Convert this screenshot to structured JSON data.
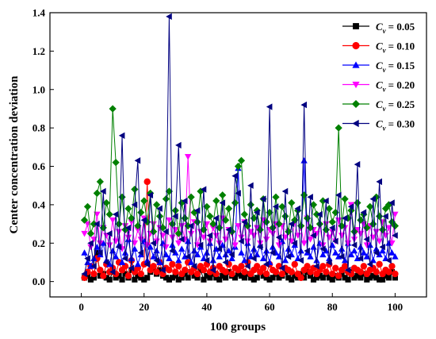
{
  "chart_data": {
    "type": "scatter",
    "title": "",
    "xlabel": "100 groups",
    "ylabel": "Center concentration deviation",
    "xlim": [
      -10,
      110
    ],
    "ylim": [
      -0.08,
      1.4
    ],
    "xticks": [
      0,
      20,
      40,
      60,
      80,
      100
    ],
    "yticks": [
      0.0,
      0.2,
      0.4,
      0.6,
      0.8,
      1.0,
      1.2,
      1.4
    ],
    "ytick_labels": [
      "0.0",
      "0.2",
      "0.4",
      "0.6",
      "0.8",
      "1.0",
      "1.2",
      "1.4"
    ],
    "grid": false,
    "legend_position": "top-right",
    "x": [
      1,
      2,
      3,
      4,
      5,
      6,
      7,
      8,
      9,
      10,
      11,
      12,
      13,
      14,
      15,
      16,
      17,
      18,
      19,
      20,
      21,
      22,
      23,
      24,
      25,
      26,
      27,
      28,
      29,
      30,
      31,
      32,
      33,
      34,
      35,
      36,
      37,
      38,
      39,
      40,
      41,
      42,
      43,
      44,
      45,
      46,
      47,
      48,
      49,
      50,
      51,
      52,
      53,
      54,
      55,
      56,
      57,
      58,
      59,
      60,
      61,
      62,
      63,
      64,
      65,
      66,
      67,
      68,
      69,
      70,
      71,
      72,
      73,
      74,
      75,
      76,
      77,
      78,
      79,
      80,
      81,
      82,
      83,
      84,
      85,
      86,
      87,
      88,
      89,
      90,
      91,
      92,
      93,
      94,
      95,
      96,
      97,
      98,
      99,
      100
    ],
    "series": [
      {
        "name_prefix": "C",
        "name_sub": "v",
        "name_value": "= 0.05",
        "color": "#000000",
        "marker": "square",
        "values": [
          0.02,
          0.03,
          0.01,
          0.02,
          0.15,
          0.03,
          0.04,
          0.02,
          0.01,
          0.05,
          0.02,
          0.03,
          0.01,
          0.04,
          0.02,
          0.06,
          0.01,
          0.03,
          0.02,
          0.01,
          0.02,
          0.05,
          0.07,
          0.04,
          0.06,
          0.03,
          0.02,
          0.01,
          0.02,
          0.03,
          0.01,
          0.02,
          0.04,
          0.02,
          0.05,
          0.03,
          0.02,
          0.06,
          0.01,
          0.03,
          0.02,
          0.04,
          0.02,
          0.01,
          0.03,
          0.02,
          0.05,
          0.03,
          0.02,
          0.04,
          0.03,
          0.02,
          0.04,
          0.02,
          0.01,
          0.02,
          0.05,
          0.03,
          0.02,
          0.01,
          0.02,
          0.04,
          0.02,
          0.03,
          0.05,
          0.02,
          0.01,
          0.03,
          0.02,
          0.04,
          0.02,
          0.05,
          0.03,
          0.01,
          0.02,
          0.03,
          0.02,
          0.04,
          0.02,
          0.01,
          0.03,
          0.02,
          0.04,
          0.02,
          0.01,
          0.05,
          0.02,
          0.03,
          0.02,
          0.04,
          0.01,
          0.02,
          0.03,
          0.02,
          0.01,
          0.01,
          0.03,
          0.02,
          0.05,
          0.02
        ]
      },
      {
        "name_prefix": "C",
        "name_sub": "v",
        "name_value": "= 0.10",
        "color": "#ff0000",
        "marker": "circle",
        "values": [
          0.02,
          0.05,
          0.08,
          0.04,
          0.12,
          0.06,
          0.03,
          0.09,
          0.05,
          0.07,
          0.04,
          0.1,
          0.06,
          0.08,
          0.03,
          0.11,
          0.05,
          0.07,
          0.04,
          0.09,
          0.52,
          0.06,
          0.08,
          0.05,
          0.1,
          0.04,
          0.07,
          0.06,
          0.09,
          0.05,
          0.08,
          0.04,
          0.06,
          0.1,
          0.05,
          0.07,
          0.04,
          0.08,
          0.06,
          0.09,
          0.05,
          0.07,
          0.04,
          0.08,
          0.06,
          0.05,
          0.09,
          0.04,
          0.07,
          0.06,
          0.08,
          0.05,
          0.1,
          0.04,
          0.06,
          0.08,
          0.05,
          0.07,
          0.04,
          0.09,
          0.06,
          0.05,
          0.08,
          0.04,
          0.07,
          0.06,
          0.05,
          0.09,
          0.04,
          0.02,
          0.06,
          0.08,
          0.05,
          0.07,
          0.04,
          0.06,
          0.08,
          0.05,
          0.09,
          0.04,
          0.07,
          0.03,
          0.06,
          0.08,
          0.05,
          0.04,
          0.07,
          0.06,
          0.05,
          0.08,
          0.04,
          0.06,
          0.07,
          0.05,
          0.09,
          0.04,
          0.06,
          0.05,
          0.08,
          0.04
        ]
      },
      {
        "name_prefix": "C",
        "name_sub": "v",
        "name_value": "= 0.15",
        "color": "#0000ff",
        "marker": "triangle-up",
        "values": [
          0.15,
          0.1,
          0.08,
          0.12,
          0.18,
          0.14,
          0.2,
          0.11,
          0.09,
          0.16,
          0.13,
          0.19,
          0.1,
          0.15,
          0.22,
          0.12,
          0.17,
          0.09,
          0.14,
          0.21,
          0.11,
          0.18,
          0.13,
          0.16,
          0.1,
          0.2,
          0.14,
          0.12,
          0.19,
          0.15,
          0.11,
          0.17,
          0.13,
          0.21,
          0.1,
          0.16,
          0.14,
          0.18,
          0.12,
          0.15,
          0.2,
          0.11,
          0.17,
          0.13,
          0.19,
          0.14,
          0.16,
          0.12,
          0.18,
          0.59,
          0.15,
          0.11,
          0.2,
          0.13,
          0.17,
          0.14,
          0.19,
          0.12,
          0.16,
          0.1,
          0.18,
          0.15,
          0.13,
          0.21,
          0.11,
          0.17,
          0.14,
          0.19,
          0.12,
          0.16,
          0.63,
          0.15,
          0.13,
          0.18,
          0.11,
          0.2,
          0.14,
          0.16,
          0.12,
          0.19,
          0.15,
          0.13,
          0.17,
          0.11,
          0.2,
          0.14,
          0.16,
          0.12,
          0.18,
          0.15,
          0.13,
          0.19,
          0.11,
          0.17,
          0.14,
          0.16,
          0.12,
          0.2,
          0.15,
          0.13
        ]
      },
      {
        "name_prefix": "C",
        "name_sub": "v",
        "name_value": "= 0.20",
        "color": "#ff00ff",
        "marker": "triangle-down",
        "values": [
          0.25,
          0.3,
          0.18,
          0.22,
          0.35,
          0.2,
          0.28,
          0.24,
          0.19,
          0.32,
          0.21,
          0.26,
          0.17,
          0.29,
          0.23,
          0.31,
          0.2,
          0.27,
          0.22,
          0.33,
          0.19,
          0.25,
          0.3,
          0.21,
          0.28,
          0.24,
          0.18,
          0.32,
          0.23,
          0.27,
          0.2,
          0.29,
          0.22,
          0.65,
          0.25,
          0.31,
          0.19,
          0.26,
          0.23,
          0.3,
          0.21,
          0.28,
          0.24,
          0.2,
          0.33,
          0.22,
          0.27,
          0.25,
          0.19,
          0.29,
          0.23,
          0.31,
          0.21,
          0.26,
          0.24,
          0.28,
          0.2,
          0.32,
          0.22,
          0.27,
          0.25,
          0.3,
          0.19,
          0.29,
          0.23,
          0.26,
          0.21,
          0.31,
          0.24,
          0.28,
          0.2,
          0.33,
          0.22,
          0.27,
          0.25,
          0.29,
          0.19,
          0.3,
          0.23,
          0.26,
          0.21,
          0.32,
          0.24,
          0.28,
          0.2,
          0.4,
          0.22,
          0.27,
          0.25,
          0.3,
          0.19,
          0.29,
          0.23,
          0.26,
          0.21,
          0.31,
          0.24,
          0.28,
          0.2,
          0.35
        ]
      },
      {
        "name_prefix": "C",
        "name_sub": "v",
        "name_value": "= 0.25",
        "color": "#008000",
        "marker": "diamond",
        "values": [
          0.32,
          0.39,
          0.25,
          0.3,
          0.46,
          0.52,
          0.28,
          0.41,
          0.35,
          0.9,
          0.62,
          0.3,
          0.44,
          0.27,
          0.38,
          0.33,
          0.48,
          0.29,
          0.36,
          0.42,
          0.31,
          0.46,
          0.26,
          0.4,
          0.34,
          0.28,
          0.43,
          0.47,
          0.3,
          0.37,
          0.25,
          0.41,
          0.33,
          0.29,
          0.44,
          0.36,
          0.31,
          0.47,
          0.27,
          0.39,
          0.34,
          0.3,
          0.42,
          0.28,
          0.45,
          0.32,
          0.38,
          0.26,
          0.41,
          0.6,
          0.63,
          0.35,
          0.29,
          0.4,
          0.33,
          0.37,
          0.27,
          0.43,
          0.31,
          0.36,
          0.28,
          0.44,
          0.3,
          0.39,
          0.34,
          0.26,
          0.41,
          0.32,
          0.37,
          0.29,
          0.45,
          0.33,
          0.28,
          0.4,
          0.35,
          0.3,
          0.42,
          0.27,
          0.38,
          0.31,
          0.36,
          0.8,
          0.29,
          0.43,
          0.33,
          0.37,
          0.26,
          0.41,
          0.32,
          0.35,
          0.28,
          0.39,
          0.3,
          0.44,
          0.34,
          0.27,
          0.38,
          0.4,
          0.31,
          0.29
        ]
      },
      {
        "name_prefix": "C",
        "name_sub": "v",
        "name_value": "= 0.30",
        "color": "#000080",
        "marker": "triangle-left",
        "values": [
          0.04,
          0.12,
          0.2,
          0.08,
          0.3,
          0.15,
          0.47,
          0.1,
          0.25,
          0.05,
          0.35,
          0.18,
          0.76,
          0.12,
          0.28,
          0.07,
          0.4,
          0.63,
          0.15,
          0.32,
          0.09,
          0.45,
          0.2,
          0.11,
          0.38,
          0.06,
          0.26,
          1.38,
          0.16,
          0.34,
          0.71,
          0.22,
          0.42,
          0.13,
          0.29,
          0.08,
          0.37,
          0.19,
          0.48,
          0.11,
          0.24,
          0.06,
          0.33,
          0.17,
          0.41,
          0.1,
          0.27,
          0.14,
          0.55,
          0.46,
          0.21,
          0.31,
          0.08,
          0.5,
          0.12,
          0.36,
          0.18,
          0.43,
          0.09,
          0.91,
          0.15,
          0.39,
          0.23,
          0.07,
          0.47,
          0.13,
          0.3,
          0.2,
          0.38,
          0.11,
          0.92,
          0.16,
          0.44,
          0.24,
          0.08,
          0.35,
          0.17,
          0.42,
          0.1,
          0.28,
          0.21,
          0.45,
          0.13,
          0.33,
          0.06,
          0.39,
          0.19,
          0.61,
          0.12,
          0.36,
          0.22,
          0.09,
          0.43,
          0.15,
          0.52,
          0.18,
          0.34,
          0.11,
          0.41,
          0.24
        ]
      }
    ]
  }
}
